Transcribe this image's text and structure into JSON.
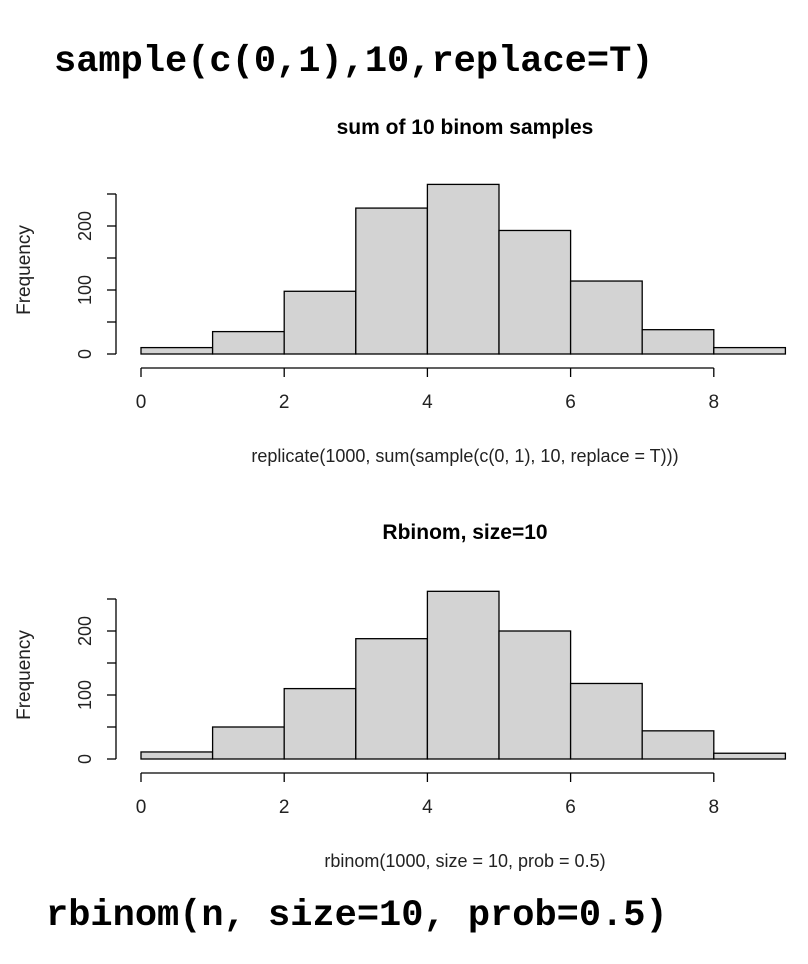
{
  "annotations": {
    "top_code": "sample(c(0,1),10,replace=T)",
    "bottom_code": "rbinom(n, size=10, prob=0.5)"
  },
  "chart_data": [
    {
      "type": "bar",
      "title": "sum of 10 binom samples",
      "xlabel": "replicate(1000, sum(sample(c(0, 1), 10, replace = T)))",
      "ylabel": "Frequency",
      "bin_edges": [
        0,
        1,
        2,
        3,
        4,
        5,
        6,
        7,
        8,
        9
      ],
      "values": [
        10,
        35,
        98,
        228,
        265,
        193,
        114,
        38,
        10
      ],
      "xlim": [
        0,
        9
      ],
      "ylim": [
        0,
        250
      ],
      "x_ticks": [
        "0",
        "2",
        "4",
        "6",
        "8"
      ],
      "y_ticks": [
        "0",
        "100",
        "200"
      ],
      "bar_fill": "#d3d3d3",
      "bar_stroke": "#000000"
    },
    {
      "type": "bar",
      "title": "Rbinom, size=10",
      "xlabel": "rbinom(1000, size = 10, prob = 0.5)",
      "ylabel": "Frequency",
      "bin_edges": [
        0,
        1,
        2,
        3,
        4,
        5,
        6,
        7,
        8,
        9
      ],
      "values": [
        11,
        50,
        110,
        188,
        262,
        200,
        118,
        44,
        9
      ],
      "xlim": [
        0,
        9
      ],
      "ylim": [
        0,
        250
      ],
      "x_ticks": [
        "0",
        "2",
        "4",
        "6",
        "8"
      ],
      "y_ticks": [
        "0",
        "100",
        "200"
      ],
      "bar_fill": "#d3d3d3",
      "bar_stroke": "#000000"
    }
  ]
}
